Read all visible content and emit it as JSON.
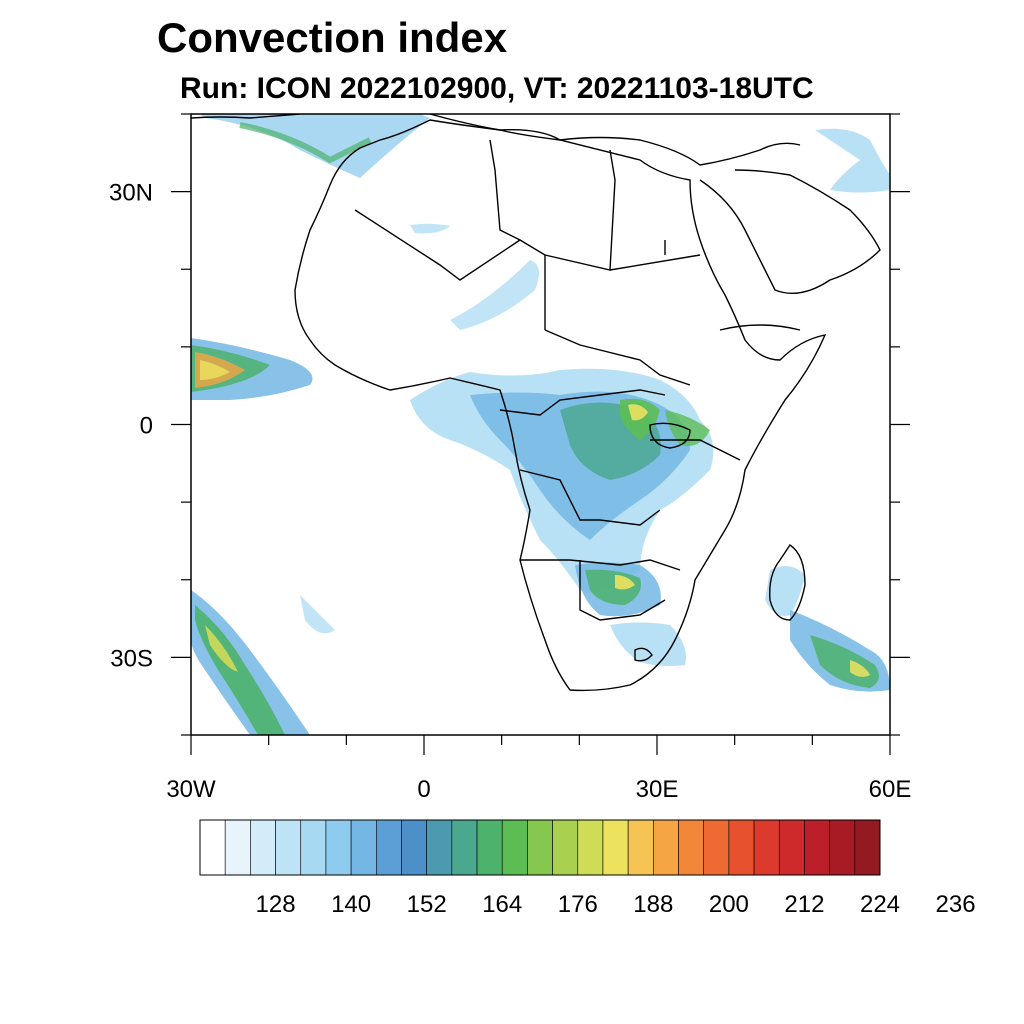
{
  "title": "Convection index",
  "subtitle": "Run: ICON 2022102900,  VT: 20221103-18UTC",
  "map": {
    "extent": {
      "lon_min": -30,
      "lon_max": 60,
      "lat_min": -40,
      "lat_max": 40
    },
    "lon_ticks": [
      {
        "lon": -30,
        "label": "30W"
      },
      {
        "lon": 0,
        "label": "0"
      },
      {
        "lon": 30,
        "label": "30E"
      },
      {
        "lon": 60,
        "label": "60E"
      }
    ],
    "lat_ticks": [
      {
        "lat": 30,
        "label": "30N"
      },
      {
        "lat": 0,
        "label": "0"
      },
      {
        "lat": -30,
        "label": "30S"
      }
    ]
  },
  "colorbar": {
    "colors": [
      "#ffffff",
      "#e8f4fb",
      "#d2ecf9",
      "#bee3f6",
      "#a8d9f3",
      "#8ecbee",
      "#74b7e4",
      "#5c9fd6",
      "#4d8fc8",
      "#4b9ab0",
      "#4aa88f",
      "#4cb26c",
      "#5dbd55",
      "#85c74f",
      "#a9d04f",
      "#cfdc57",
      "#ece25e",
      "#f6c452",
      "#f5a544",
      "#f2873a",
      "#ee6a32",
      "#e7512e",
      "#dd3a2d",
      "#cf2a2b",
      "#bc1f29",
      "#a81b25",
      "#921a20"
    ],
    "labels": [
      "128",
      "140",
      "152",
      "164",
      "176",
      "188",
      "200",
      "212",
      "224",
      "236"
    ]
  }
}
